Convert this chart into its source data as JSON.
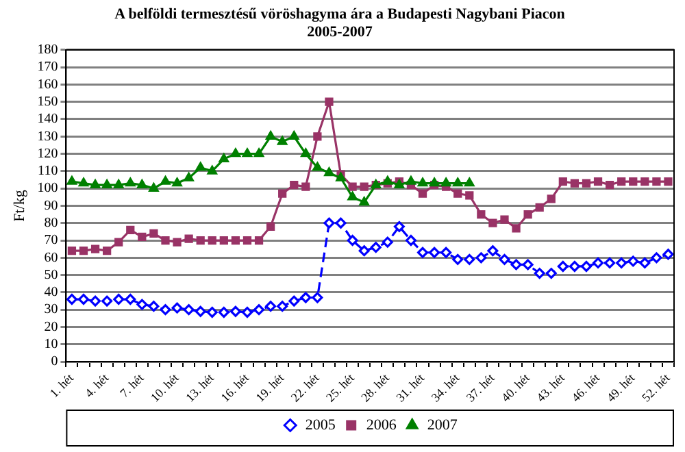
{
  "chart_data": {
    "type": "line",
    "title": "A belföldi termesztésű vöröshagyma ára a Budapesti Nagybani Piacon",
    "subtitle": "2005-2007",
    "ylabel": "Ft/kg",
    "categories": [
      "1. hét",
      null,
      null,
      "4. hét",
      null,
      null,
      "7. hét",
      null,
      null,
      "10. hét",
      null,
      null,
      "13. hét",
      null,
      null,
      "16. hét",
      null,
      null,
      "19. hét",
      null,
      null,
      "22. hét",
      null,
      null,
      "25. hét",
      null,
      null,
      "28. hét",
      null,
      null,
      "31. hét",
      null,
      null,
      "34. hét",
      null,
      null,
      "37. hét",
      null,
      null,
      "40. hét",
      null,
      null,
      "43. hét",
      null,
      null,
      "46. hét",
      null,
      null,
      "49. hét",
      null,
      null,
      "52. hét"
    ],
    "series": [
      {
        "name": "2005",
        "color": "#0000ff",
        "marker": "diamond",
        "line_style": "dashed",
        "values": [
          36,
          36,
          35,
          35,
          36,
          36,
          33,
          32,
          30,
          31,
          30,
          29,
          28.5,
          28.5,
          29,
          28.5,
          30,
          32,
          32,
          35,
          37,
          37,
          80,
          80,
          70,
          64,
          66,
          69,
          78,
          70,
          63,
          63,
          63,
          59,
          59,
          60,
          64,
          59,
          56,
          56,
          51,
          51,
          55,
          55,
          55,
          57,
          57,
          57,
          58,
          57,
          60,
          62
        ]
      },
      {
        "name": "2006",
        "color": "#993366",
        "marker": "square",
        "line_style": "solid",
        "values": [
          64,
          64,
          65,
          64,
          69,
          76,
          72,
          74,
          70,
          69,
          71,
          70,
          70,
          70,
          70,
          70,
          70,
          78,
          97,
          102,
          101,
          130,
          150,
          108,
          101,
          101,
          102,
          103,
          104,
          102,
          97,
          102,
          101,
          97,
          96,
          85,
          80,
          82,
          77,
          85,
          89,
          94,
          104,
          103,
          103,
          104,
          102,
          104,
          104,
          104,
          104,
          104
        ]
      },
      {
        "name": "2007",
        "color": "#008000",
        "marker": "triangle",
        "line_style": "solid",
        "values": [
          104,
          103,
          102,
          102,
          102,
          103,
          102,
          100,
          104,
          103,
          106,
          112,
          110,
          117,
          120,
          120,
          120,
          130,
          127,
          130,
          120,
          112,
          109,
          106,
          95,
          92,
          102,
          104,
          102,
          104,
          103,
          103,
          103,
          103,
          103,
          null,
          null,
          null,
          null,
          null,
          null,
          null,
          null,
          null,
          null,
          null,
          null,
          null,
          null,
          null,
          null,
          null
        ]
      }
    ],
    "ylim": [
      0,
      180
    ],
    "yticks": [
      0,
      10,
      20,
      30,
      40,
      50,
      60,
      70,
      80,
      90,
      100,
      110,
      120,
      130,
      140,
      150,
      160,
      170,
      180
    ],
    "grid": "y",
    "legend": "bottom"
  }
}
